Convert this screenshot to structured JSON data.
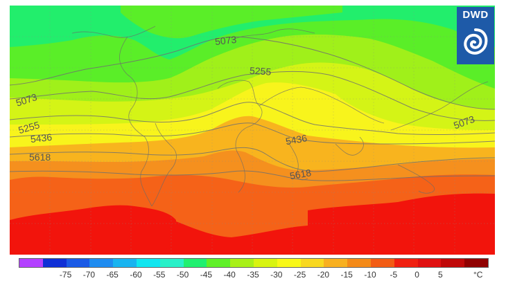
{
  "logo": {
    "text": "DWD"
  },
  "map": {
    "contour_labels": [
      {
        "text": "5073"
      },
      {
        "text": "5255"
      },
      {
        "text": "5073"
      },
      {
        "text": "5255"
      },
      {
        "text": "5436"
      },
      {
        "text": "5618"
      },
      {
        "text": "5436"
      },
      {
        "text": "5618"
      },
      {
        "text": "5073"
      }
    ]
  },
  "colorbar": {
    "colors": [
      "#b340ff",
      "#0f2fd6",
      "#1a5ae6",
      "#1e8cf0",
      "#18b4f0",
      "#10e6f0",
      "#28f0c8",
      "#20f070",
      "#60f028",
      "#a8f018",
      "#d8f410",
      "#f8f818",
      "#f8d820",
      "#f8b020",
      "#f48a18",
      "#f25c14",
      "#f02010",
      "#e01010",
      "#c00808",
      "#900000"
    ],
    "tick_labels": [
      "-75",
      "-70",
      "-65",
      "-60",
      "-55",
      "-50",
      "-45",
      "-40",
      "-35",
      "-30",
      "-25",
      "-20",
      "-15",
      "-10",
      "-5",
      "0",
      "5"
    ],
    "unit": "°C"
  }
}
